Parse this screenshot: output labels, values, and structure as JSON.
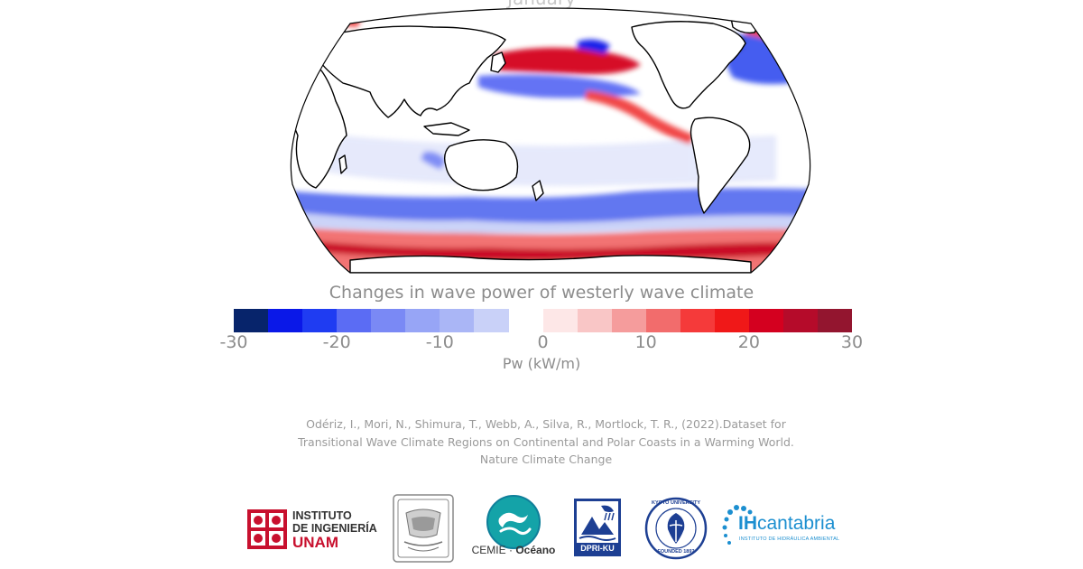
{
  "map": {
    "title": "January",
    "projection": "robinson",
    "center_longitude": 150,
    "colors": {
      "red_dark": "#c8001e",
      "red": "#f03c3c",
      "red_light": "#f8b4b4",
      "blue_dark": "#1c1cd0",
      "blue": "#5a6ff0",
      "blue_light": "#aebdf6",
      "coast": "#000000"
    }
  },
  "colorbar": {
    "title": "Changes in wave power of westerly wave climate",
    "unit_label": "Pw (kW/m)",
    "min": -30,
    "max": 30,
    "ticks": [
      "-30",
      "-20",
      "-10",
      "0",
      "10",
      "20",
      "30"
    ],
    "colors": [
      "#07246b",
      "#0a18e8",
      "#1f3cf2",
      "#5b6cf4",
      "#7a89f5",
      "#97a5f6",
      "#aab6f6",
      "#c9d1f8",
      "#ffffff",
      "#fde7e7",
      "#f9c6c6",
      "#f59c9c",
      "#f26c6c",
      "#f53a3a",
      "#f01818",
      "#d4001f",
      "#b50b2a",
      "#93152f"
    ]
  },
  "citation": {
    "line1": "Odériz, I.,  Mori, N., Shimura, T., Webb, A., Silva, R., Mortlock, T. R., (2022).Dataset for",
    "line2": "Transitional Wave Climate Regions on  Continental and Polar Coasts in a Warming World.",
    "line3": "Nature Climate Change"
  },
  "logos": {
    "unam_line1": "INSTITUTO",
    "unam_line2": "DE INGENIERÍA",
    "unam_line3": "UNAM",
    "cemie_a": "CEMIE",
    "cemie_sep": "·",
    "cemie_b": "Océano",
    "dpri": "DPRI-KU",
    "kyoto": "KYOTO UNIVERSITY",
    "kyoto_founded": "FOUNDED 1897",
    "ihc_a": "IH",
    "ihc_b": "cantabria",
    "ihc_sub": "INSTITUTO DE HIDRÁULICA AMBIENTAL",
    "colors": {
      "unam_red": "#c8102e",
      "cemie_teal": "#14a3a8",
      "dpri_blue": "#1d3f93",
      "kyoto_blue": "#1d3f93",
      "ihc_blue": "#1c8fd0"
    }
  }
}
